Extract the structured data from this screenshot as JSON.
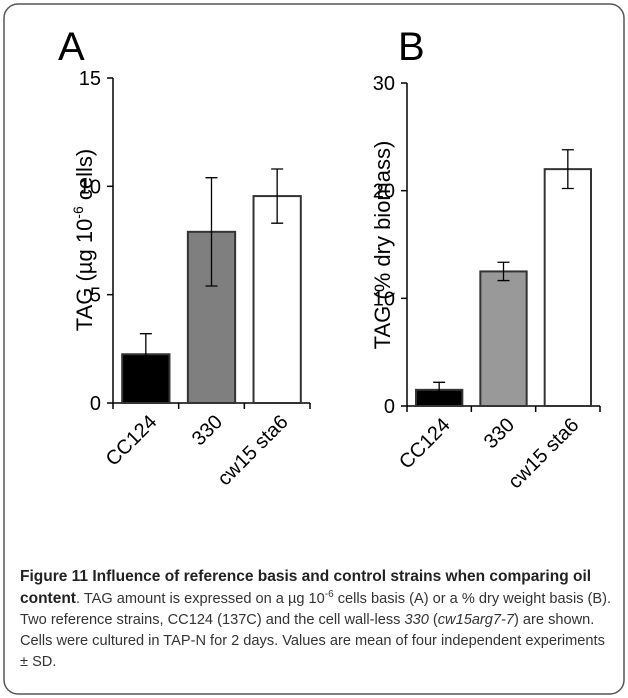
{
  "chart_data": [
    {
      "type": "bar",
      "panel": "A",
      "ylabel": "TAG (µg 10",
      "ylabel_sup": "-6",
      "ylabel_end": " cells)",
      "categories": [
        "CC124",
        "330",
        "cw15 sta6"
      ],
      "values": [
        2.25,
        7.9,
        9.55
      ],
      "errors": [
        0.95,
        2.5,
        1.25
      ],
      "colors": [
        "#000000",
        "#7f7f7f",
        "#ffffff"
      ],
      "ylim": [
        0,
        15
      ],
      "yticks": [
        0,
        5,
        10,
        15
      ]
    },
    {
      "type": "bar",
      "panel": "B",
      "ylabel": "TAG (% dry biomass)",
      "categories": [
        "CC124",
        "330",
        "cw15 sta6"
      ],
      "values": [
        1.5,
        12.5,
        22
      ],
      "errors": [
        0.7,
        0.85,
        1.8
      ],
      "colors": [
        "#000000",
        "#999999",
        "#ffffff"
      ],
      "ylim": [
        0,
        30
      ],
      "yticks": [
        0,
        10,
        20,
        30
      ]
    }
  ],
  "caption": {
    "segments": [
      "Figure 11 Influence of reference basis and control strains when comparing oil content",
      ". TAG amount is expressed on a µg 10",
      "-6",
      " cells basis (A) or a % dry weight basis (B). Two reference strains, CC124 (137C) and the cell wall-less ",
      "330",
      " (",
      "cw15arg7-7",
      ") are shown. Cells were cultured in TAP-N for 2 days. Values are mean of four independent experiments ± SD."
    ]
  }
}
